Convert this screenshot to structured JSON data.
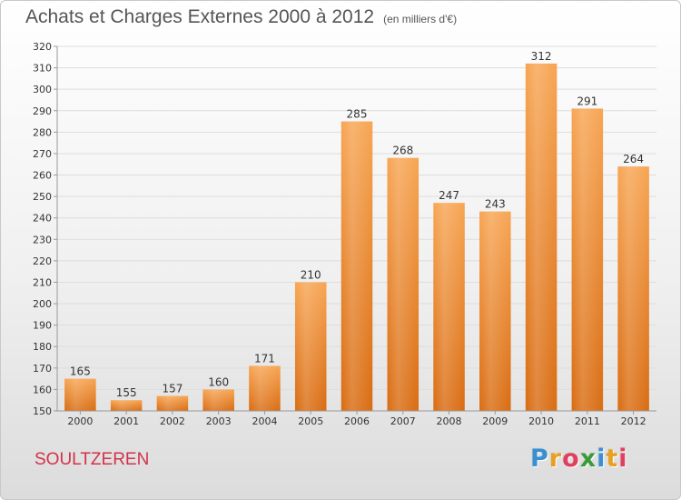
{
  "header": {
    "title": "Achats et Charges Externes 2000 à 2012",
    "subtitle": "(en milliers d'€)"
  },
  "place_name": "SOULTZEREN",
  "logo": {
    "text": "Proxiti",
    "letters": [
      "P",
      "r",
      "o",
      "x",
      "i",
      "t",
      "i"
    ],
    "letter_colors": [
      "#3a8fd0",
      "#e8a020",
      "#e04060",
      "#3a9a3a",
      "#3a8fd0",
      "#e8a020",
      "#e04060"
    ]
  },
  "colors": {
    "bar_top": "#f7a553",
    "bar_bottom": "#d96c12",
    "grid": "#dddddd",
    "axis_text": "#333333"
  },
  "chart_data": {
    "type": "bar",
    "title": "Achats et Charges Externes 2000 à 2012",
    "subtitle": "(en milliers d'€)",
    "categories": [
      "2000",
      "2001",
      "2002",
      "2003",
      "2004",
      "2005",
      "2006",
      "2007",
      "2008",
      "2009",
      "2010",
      "2011",
      "2012"
    ],
    "values": [
      165,
      155,
      157,
      160,
      171,
      210,
      285,
      268,
      247,
      243,
      312,
      291,
      264
    ],
    "ylim": [
      150,
      320
    ],
    "yticks": [
      150,
      160,
      170,
      180,
      190,
      200,
      210,
      220,
      230,
      240,
      250,
      260,
      270,
      280,
      290,
      300,
      310,
      320
    ],
    "grid": true,
    "data_labels": true,
    "legend": "none"
  }
}
